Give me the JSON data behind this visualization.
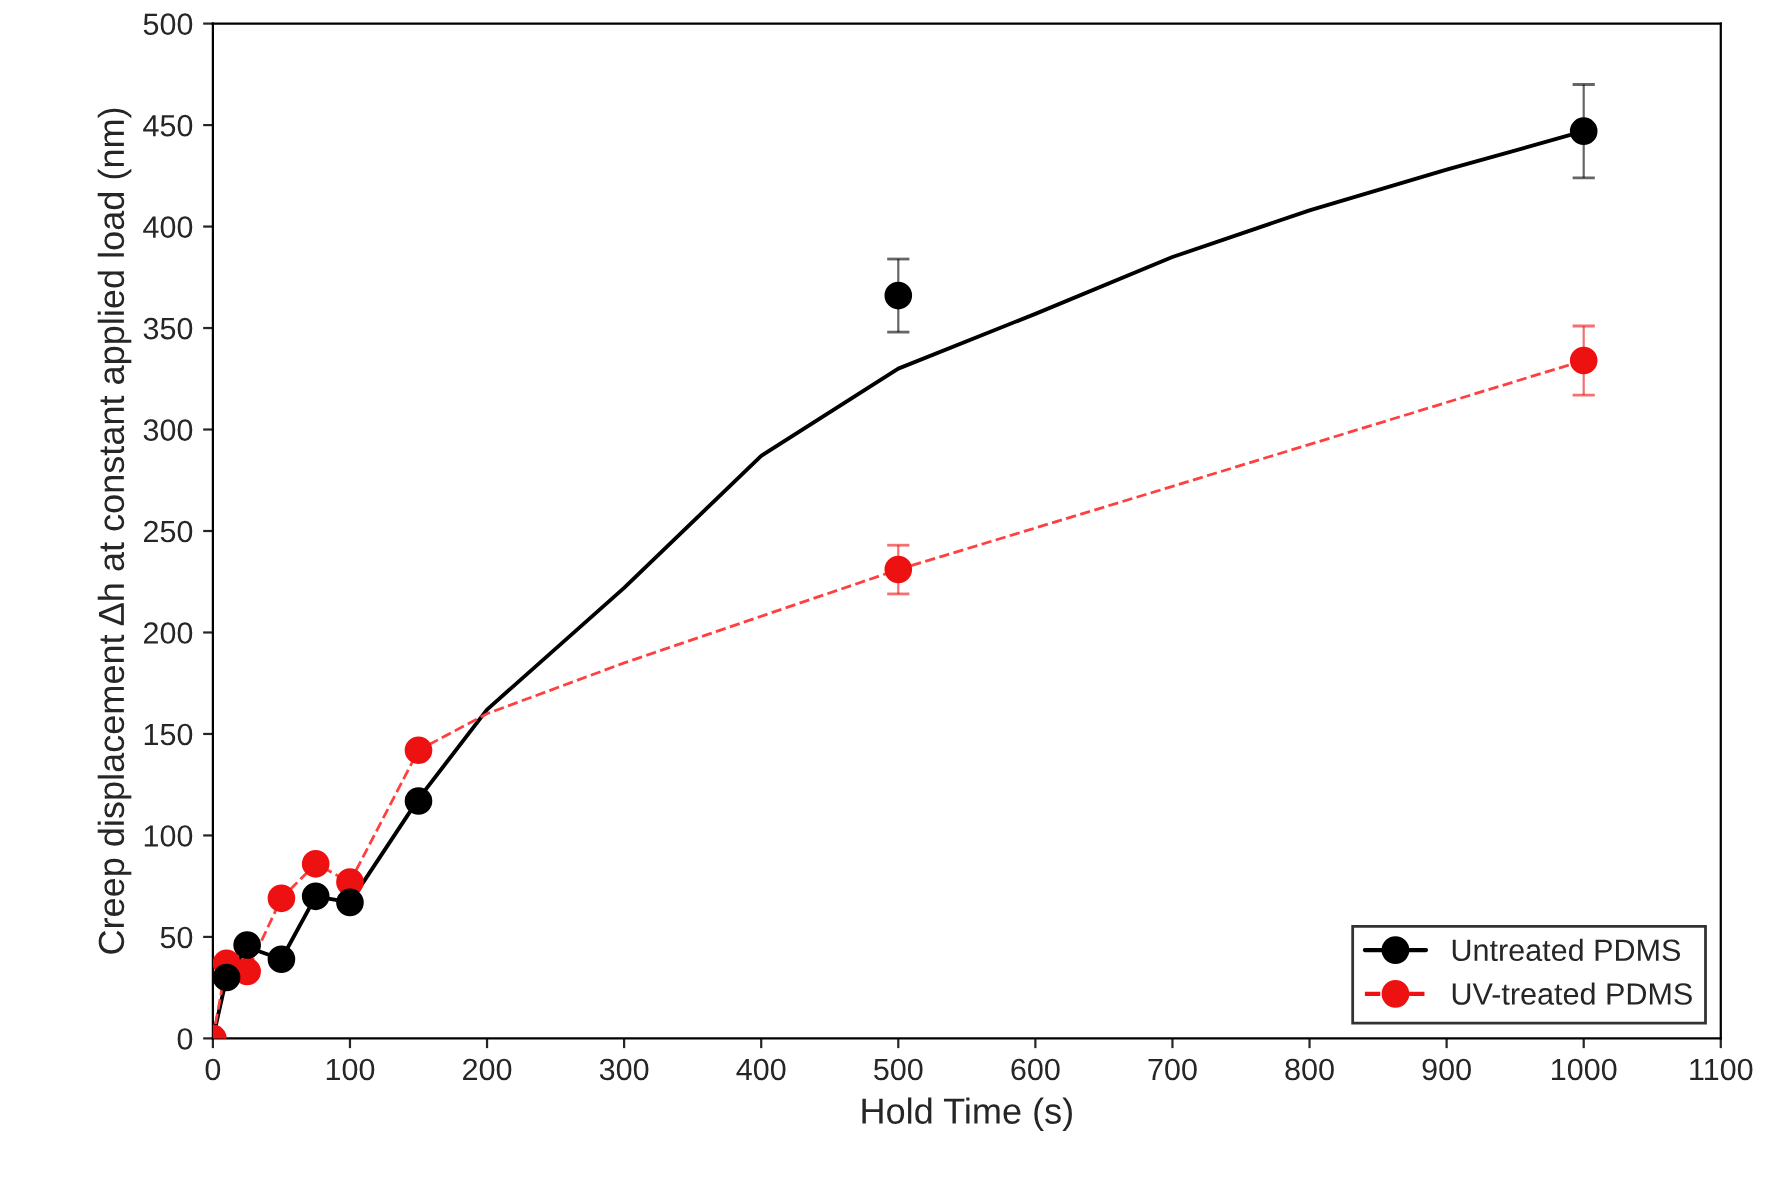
{
  "chart_data": {
    "type": "scatter",
    "xlabel": "Hold Time (s)",
    "ylabel": "Creep displacement Δh at constant applied load (nm)",
    "xlim": [
      0,
      1100
    ],
    "xticks": [
      0,
      100,
      200,
      300,
      400,
      500,
      600,
      700,
      800,
      900,
      1000,
      1100
    ],
    "ylim": [
      0,
      500
    ],
    "yticks": [
      0,
      50,
      100,
      150,
      200,
      250,
      300,
      350,
      400,
      450,
      500
    ],
    "grid": false,
    "legend": "bottom right",
    "marker": "circle",
    "series": [
      {
        "type": "line",
        "marker": "none",
        "color": "#000000",
        "line_style": "solid",
        "x": [
          0,
          10,
          25,
          50,
          75,
          100,
          150,
          200,
          300,
          400,
          500,
          600,
          700,
          800,
          900,
          1000
        ],
        "values": [
          0,
          30,
          45,
          39,
          70,
          67,
          118,
          162,
          222,
          287,
          330,
          357,
          385,
          408,
          428,
          447
        ]
      },
      {
        "type": "line",
        "marker": "none",
        "color": "#ff4040",
        "line_style": "dashed",
        "x": [
          0,
          10,
          25,
          50,
          75,
          100,
          150,
          200,
          300,
          400,
          500,
          700,
          1000
        ],
        "values": [
          0,
          37,
          33,
          69,
          86,
          77,
          142,
          160,
          185,
          208,
          231,
          272,
          334
        ]
      },
      {
        "name": "Untreated PDMS",
        "color": "#000000",
        "x": [
          10,
          25,
          50,
          75,
          100,
          150,
          500,
          1000
        ],
        "values": [
          30,
          46,
          39,
          70,
          67,
          117,
          366,
          447
        ],
        "errors": [
          null,
          null,
          null,
          null,
          null,
          null,
          18,
          23
        ]
      },
      {
        "name": "UV-treated PDMS",
        "color": "#ee1111",
        "x": [
          0,
          10,
          25,
          50,
          75,
          100,
          150,
          500,
          1000
        ],
        "values": [
          0,
          37,
          33,
          69,
          86,
          77,
          142,
          231,
          334
        ],
        "errors": [
          null,
          null,
          null,
          null,
          null,
          null,
          null,
          12,
          17
        ]
      }
    ]
  }
}
